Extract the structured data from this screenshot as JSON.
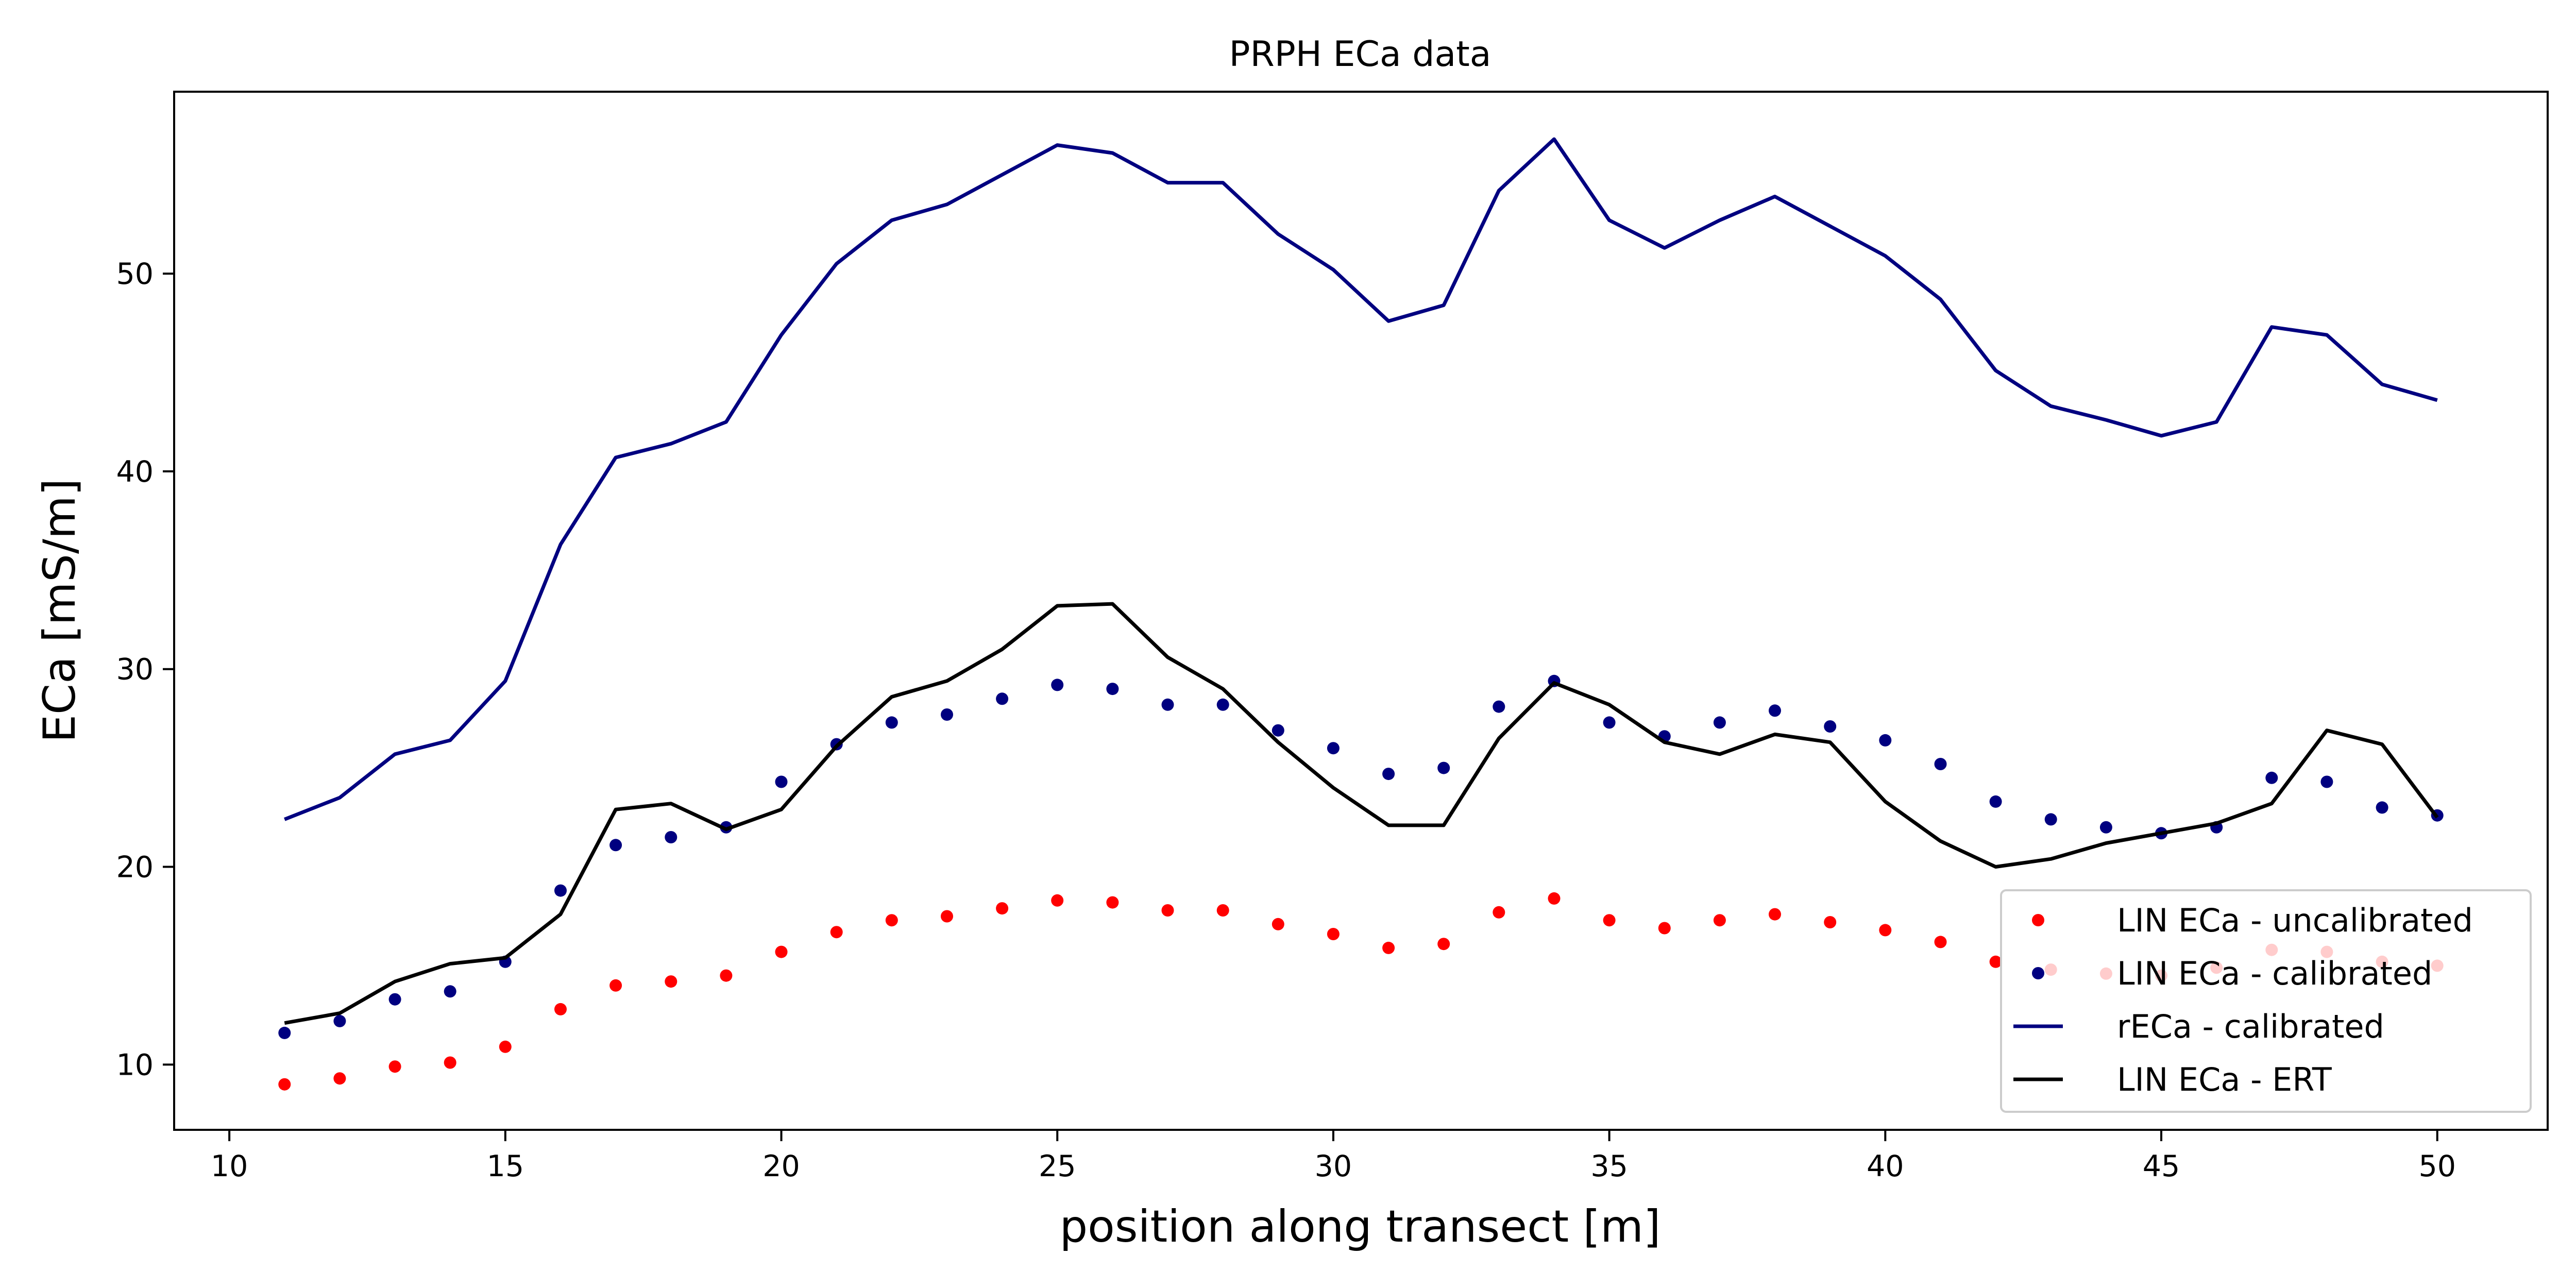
{
  "chart_data": {
    "type": "line",
    "title": "PRPH ECa data",
    "xlabel": "position along transect [m]",
    "ylabel": "ECa [mS/m]",
    "xlim": [
      9,
      52
    ],
    "ylim": [
      6.7,
      59.2
    ],
    "xticks": [
      10,
      15,
      20,
      25,
      30,
      35,
      40,
      45,
      50
    ],
    "yticks": [
      10,
      20,
      30,
      40,
      50
    ],
    "grid": false,
    "legend_position": "lower-right",
    "x": [
      11,
      12,
      13,
      14,
      15,
      16,
      17,
      18,
      19,
      20,
      21,
      22,
      23,
      24,
      25,
      26,
      27,
      28,
      29,
      30,
      31,
      32,
      33,
      34,
      35,
      36,
      37,
      38,
      39,
      40,
      41,
      42,
      43,
      44,
      45,
      46,
      47,
      48,
      49,
      50
    ],
    "series": [
      {
        "name": "LIN ECa - uncalibrated",
        "style": "markers",
        "color": "#ff0000",
        "values": [
          9.0,
          9.3,
          9.9,
          10.1,
          10.9,
          12.8,
          14.0,
          14.2,
          14.5,
          15.7,
          16.7,
          17.3,
          17.5,
          17.9,
          18.3,
          18.2,
          17.8,
          17.8,
          17.1,
          16.6,
          15.9,
          16.1,
          17.7,
          18.4,
          17.3,
          16.9,
          17.3,
          17.6,
          17.2,
          16.8,
          16.2,
          15.2,
          14.8,
          14.6,
          14.5,
          14.9,
          15.8,
          15.7,
          15.2,
          15.0
        ]
      },
      {
        "name": "LIN ECa - calibrated",
        "style": "markers",
        "color": "#000080",
        "values": [
          11.6,
          12.2,
          13.3,
          13.7,
          15.2,
          18.8,
          21.1,
          21.5,
          22.0,
          24.3,
          26.2,
          27.3,
          27.7,
          28.5,
          29.2,
          29.0,
          28.2,
          28.2,
          26.9,
          26.0,
          24.7,
          25.0,
          28.1,
          29.4,
          27.3,
          26.6,
          27.3,
          27.9,
          27.1,
          26.4,
          25.2,
          23.3,
          22.4,
          22.0,
          21.7,
          22.0,
          24.5,
          24.3,
          23.0,
          22.6
        ]
      },
      {
        "name": "rECa - calibrated",
        "style": "line",
        "color": "#000080",
        "values": [
          22.4,
          23.5,
          25.7,
          26.4,
          29.4,
          36.3,
          40.7,
          41.4,
          42.5,
          46.9,
          50.5,
          52.7,
          53.5,
          55.0,
          56.5,
          56.1,
          54.6,
          54.6,
          52.0,
          50.2,
          47.6,
          48.4,
          54.2,
          56.8,
          52.7,
          51.3,
          52.7,
          53.9,
          52.4,
          50.9,
          48.7,
          45.1,
          43.3,
          42.6,
          41.8,
          42.5,
          47.3,
          46.9,
          44.4,
          43.6
        ]
      },
      {
        "name": "LIN ECa - ERT",
        "style": "line",
        "color": "#000000",
        "values": [
          12.1,
          12.6,
          14.2,
          15.1,
          15.4,
          17.6,
          22.9,
          23.2,
          21.9,
          22.9,
          26.1,
          28.6,
          29.4,
          31.0,
          33.2,
          33.3,
          30.6,
          29.0,
          26.3,
          24.0,
          22.1,
          22.1,
          26.5,
          29.3,
          28.2,
          26.3,
          25.7,
          26.7,
          26.3,
          23.3,
          21.3,
          20.0,
          20.4,
          21.2,
          21.7,
          22.2,
          23.2,
          26.9,
          26.2,
          22.5
        ]
      }
    ]
  }
}
